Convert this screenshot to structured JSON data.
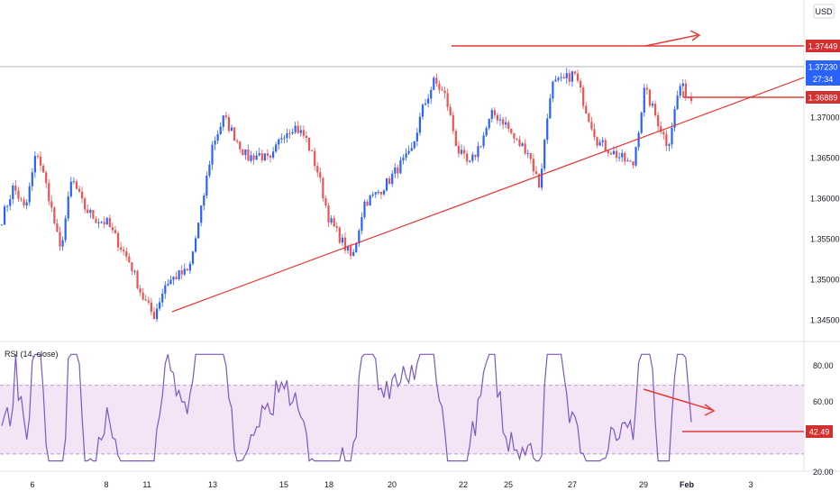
{
  "currency_label": "USD",
  "price_tags": {
    "resistance": "1.37449",
    "current": "1.37230",
    "countdown": "27:34",
    "support": "1.36889"
  },
  "rsi": {
    "title": "RSI (14, close)",
    "value_tag": "42.49",
    "ticks": [
      "80.00",
      "60.00",
      "20.00"
    ]
  },
  "colors": {
    "up": "#2962ff",
    "down": "#ef5350",
    "trend_lines": "#e53935",
    "resistance_tag": "#d32f2f",
    "current_tag": "#2962ff",
    "rsi_line": "#7e57c2",
    "rsi_band": "#f3e5f5"
  },
  "chart_data": {
    "type": "candlestick",
    "price_ticks": [
      "1.34500",
      "1.35000",
      "1.35500",
      "1.36000",
      "1.36500",
      "1.37000"
    ],
    "price_range": [
      1.3425,
      1.3845
    ],
    "x_labels": [
      "6",
      "8",
      "11",
      "13",
      "15",
      "18",
      "20",
      "22",
      "25",
      "27",
      "29",
      "Feb",
      "3"
    ],
    "levels": {
      "resistance": 1.37449,
      "current": 1.3723,
      "support": 1.36889
    },
    "ascending_trendline": {
      "from": 1.3453,
      "to": 1.3708
    },
    "rsi_range": [
      20,
      95
    ],
    "rsi_levels": {
      "upper": 70,
      "lower": 30
    },
    "close_path": [
      1.3575,
      1.3615,
      1.3585,
      1.366,
      1.3605,
      1.3535,
      1.3625,
      1.359,
      1.3575,
      1.357,
      1.3545,
      1.352,
      1.348,
      1.3455,
      1.3495,
      1.3505,
      1.351,
      1.358,
      1.3665,
      1.37,
      1.3675,
      1.365,
      1.3655,
      1.3645,
      1.368,
      1.369,
      1.3675,
      1.3635,
      1.3575,
      1.355,
      1.3525,
      1.3595,
      1.3605,
      1.362,
      1.364,
      1.3655,
      1.371,
      1.3745,
      1.3725,
      1.366,
      1.364,
      1.367,
      1.3705,
      1.3695,
      1.367,
      1.366,
      1.3615,
      1.374,
      1.3745,
      1.3755,
      1.371,
      1.367,
      1.366,
      1.365,
      1.364,
      1.3735,
      1.37,
      1.3665,
      1.374,
      1.3723
    ]
  }
}
